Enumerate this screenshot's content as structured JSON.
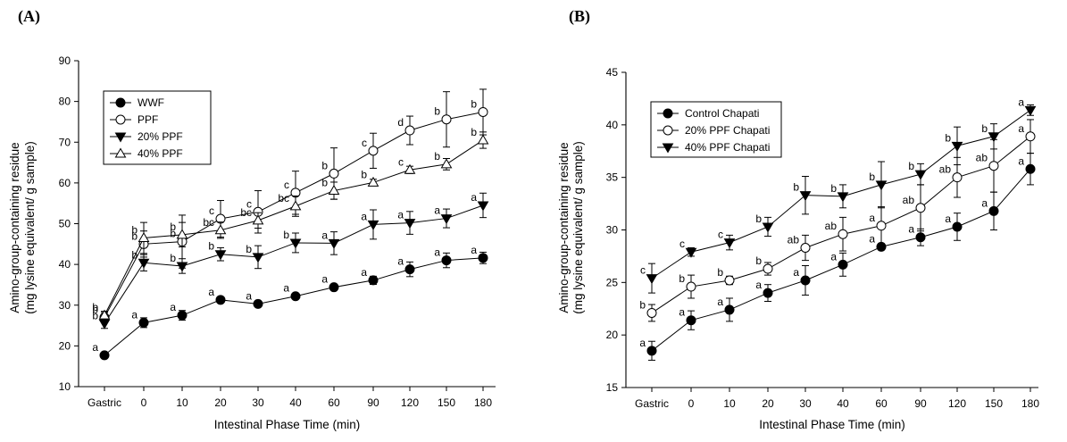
{
  "panels": {
    "a_label": "(A)",
    "b_label": "(B)"
  },
  "chart_data": [
    {
      "type": "line",
      "panel": "(A)",
      "categories": [
        "Gastric",
        "0",
        "10",
        "20",
        "30",
        "40",
        "60",
        "90",
        "120",
        "150",
        "180"
      ],
      "xlabel": "Intestinal Phase Time (min)",
      "ylabel": [
        "Amino-group-containing residue",
        "(mg lysine equivalent/ g sample)"
      ],
      "ylim": [
        10,
        90
      ],
      "yticks": [
        10,
        20,
        30,
        40,
        50,
        60,
        70,
        80,
        90
      ],
      "grid": false,
      "legend_position": "top-left",
      "series": [
        {
          "name": "WWF",
          "marker": "filled-circle",
          "values": [
            17.7,
            25.7,
            27.5,
            31.3,
            30.3,
            32.2,
            34.4,
            36.1,
            38.8,
            41.0,
            41.6
          ],
          "errors": [
            0.5,
            1.2,
            1.2,
            0.5,
            0.6,
            0.5,
            0.6,
            1.0,
            1.8,
            1.8,
            1.4
          ],
          "labels": [
            "a",
            "a",
            "a",
            "a",
            "a",
            "a",
            "a",
            "a",
            "a",
            "a",
            "a"
          ]
        },
        {
          "name": "PPF",
          "marker": "open-circle",
          "values": [
            27.0,
            45.0,
            45.6,
            51.2,
            52.9,
            57.6,
            62.3,
            67.9,
            72.9,
            75.6,
            77.4
          ],
          "errors": [
            1.2,
            3.2,
            6.5,
            4.5,
            5.2,
            5.3,
            6.3,
            4.3,
            3.5,
            6.8,
            5.6
          ],
          "labels": [
            "b",
            "b",
            "b",
            "c",
            "c",
            "c",
            "b",
            "c",
            "d",
            "b",
            "b"
          ]
        },
        {
          "name": "20% PPF",
          "marker": "filled-triangle-down",
          "values": [
            25.5,
            40.4,
            39.6,
            42.5,
            41.8,
            45.3,
            45.2,
            49.8,
            50.2,
            51.3,
            54.5
          ],
          "errors": [
            1.2,
            2.0,
            1.8,
            1.6,
            2.8,
            2.4,
            2.8,
            3.6,
            2.8,
            2.3,
            3.0
          ],
          "labels": [
            "b",
            "b",
            "b",
            "b",
            "b",
            "b",
            "a",
            "a",
            "a",
            "a",
            "a"
          ]
        },
        {
          "name": "40% PPF",
          "marker": "open-triangle-up",
          "values": [
            27.5,
            46.5,
            47.3,
            48.4,
            50.8,
            54.3,
            58.1,
            60.1,
            63.2,
            64.6,
            70.5
          ],
          "errors": [
            1.0,
            3.8,
            3.0,
            2.0,
            1.9,
            2.5,
            2.1,
            0.8,
            0.9,
            1.4,
            2.0
          ],
          "labels": [
            "b",
            "b",
            "b",
            "bc",
            "bc",
            "bc",
            "b",
            "b",
            "c",
            "b",
            "b"
          ]
        }
      ]
    },
    {
      "type": "line",
      "panel": "(B)",
      "categories": [
        "Gastric",
        "0",
        "10",
        "20",
        "30",
        "40",
        "60",
        "90",
        "120",
        "150",
        "180"
      ],
      "xlabel": "Intestinal Phase Time (min)",
      "ylabel": [
        "Amino-group-containing residue",
        "(mg lysine equivalent/ g sample)"
      ],
      "ylim": [
        15,
        45
      ],
      "yticks": [
        15,
        20,
        25,
        30,
        35,
        40,
        45
      ],
      "grid": false,
      "legend_position": "top-left",
      "series": [
        {
          "name": "Control Chapati",
          "marker": "filled-circle",
          "values": [
            18.5,
            21.4,
            22.4,
            24.0,
            25.2,
            26.7,
            28.4,
            29.3,
            30.3,
            31.8,
            35.8
          ],
          "errors": [
            0.9,
            0.9,
            1.1,
            0.8,
            1.4,
            1.1,
            0.3,
            0.8,
            1.3,
            1.8,
            1.5
          ],
          "labels": [
            "a",
            "a",
            "a",
            "a",
            "a",
            "a",
            "a",
            "a",
            "a",
            "a",
            "a"
          ]
        },
        {
          "name": "20% PPF Chapati",
          "marker": "open-circle",
          "values": [
            22.1,
            24.6,
            25.2,
            26.3,
            28.3,
            29.6,
            30.4,
            32.1,
            35.0,
            36.1,
            38.9
          ],
          "errors": [
            0.8,
            1.1,
            0.4,
            0.6,
            1.2,
            1.6,
            1.8,
            2.2,
            1.9,
            2.5,
            1.6
          ],
          "labels": [
            "b",
            "b",
            "b",
            "b",
            "ab",
            "ab",
            "a",
            "ab",
            "ab",
            "ab",
            "a"
          ]
        },
        {
          "name": "40% PPF Chapati",
          "marker": "filled-triangle-down",
          "values": [
            25.4,
            27.9,
            28.8,
            30.3,
            33.3,
            33.2,
            34.3,
            35.3,
            38.0,
            38.9,
            41.4
          ],
          "errors": [
            1.4,
            0.4,
            0.7,
            0.9,
            1.8,
            1.1,
            2.2,
            1.0,
            1.8,
            1.2,
            0.5
          ],
          "labels": [
            "c",
            "c",
            "c",
            "b",
            "b",
            "b",
            "b",
            "b",
            "b",
            "b",
            "a"
          ]
        }
      ]
    }
  ]
}
